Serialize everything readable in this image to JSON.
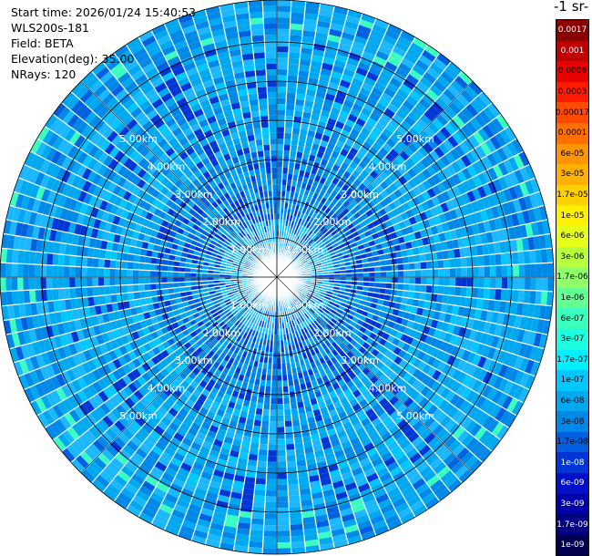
{
  "header": {
    "start_time": "Start time: 2026/01/24 15:40:53",
    "device": "WLS200s-181",
    "field": "Field: BETA",
    "elevation": "Elevation(deg): 35.00",
    "nrays": "NRays: 120"
  },
  "chart_data": {
    "type": "heatmap",
    "projection": "polar (PPI)",
    "field": "BETA",
    "elevation_deg": 35.0,
    "n_rays": 120,
    "range_rings_km": [
      "1.00km",
      "2.00km",
      "3.00km",
      "4.00km",
      "5.00km"
    ],
    "colorbar_title": "-1 sr-",
    "colorbar_labels": [
      "0.0017",
      "0.001",
      "0.0006",
      "0.0003",
      "0.00017",
      "0.0001",
      "6e-05",
      "3e-05",
      "1.7e-05",
      "1e-05",
      "6e-06",
      "3e-06",
      "1.7e-06",
      "1e-06",
      "6e-07",
      "3e-07",
      "1.7e-07",
      "1e-07",
      "6e-08",
      "3e-08",
      "1.7e-08",
      "1e-08",
      "6e-09",
      "3e-09",
      "1.7e-09",
      "1e-09"
    ],
    "colorbar_colors": [
      "#8b0000",
      "#c00000",
      "#e80000",
      "#ff1a00",
      "#ff4a00",
      "#ff7000",
      "#ff9600",
      "#ffb000",
      "#ffd000",
      "#fff000",
      "#e6ff1a",
      "#b8ff40",
      "#90ff6a",
      "#62ff94",
      "#3affc0",
      "#1cffe0",
      "#00f0ff",
      "#00c8ff",
      "#00a8f0",
      "#0088e8",
      "#0060e0",
      "#0036d6",
      "#0010c8",
      "#0000aa",
      "#000080",
      "#00004e"
    ]
  }
}
